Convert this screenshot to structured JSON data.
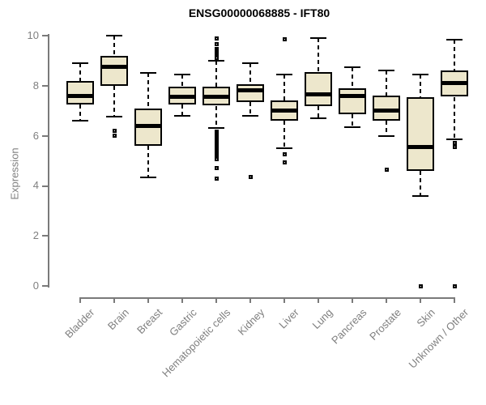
{
  "header": {
    "title": "ENSG00000068885 - IFT80"
  },
  "colors": {
    "box_fill": "#EDE7CC",
    "box_border": "#000000",
    "axis_line": "#7a7a7a",
    "tick_label_text": "#7f7f7f",
    "title_text": "#000000",
    "background": "#ffffff"
  },
  "chart_data": {
    "type": "boxplot",
    "title": "ENSG00000068885 - IFT80",
    "xlabel": "",
    "ylabel": "Expression",
    "ylim": [
      0,
      10
    ],
    "yticks": [
      0,
      2,
      4,
      6,
      8,
      10
    ],
    "grid": false,
    "legend": "none",
    "categories": [
      "Bladder",
      "Brain",
      "Breast",
      "Gastric",
      "Hematopoietic cells",
      "Kidney",
      "Liver",
      "Lung",
      "Pancreas",
      "Prostate",
      "Skin",
      "Unknown / Other"
    ],
    "series": [
      {
        "name": "Bladder",
        "low": 6.6,
        "q1": 7.25,
        "median": 7.6,
        "q3": 8.2,
        "high": 8.9,
        "outliers": []
      },
      {
        "name": "Brain",
        "low": 6.75,
        "q1": 8.0,
        "median": 8.75,
        "q3": 9.2,
        "high": 10.0,
        "outliers": [
          6.2,
          6.0
        ]
      },
      {
        "name": "Breast",
        "low": 4.35,
        "q1": 5.6,
        "median": 6.4,
        "q3": 7.1,
        "high": 8.5,
        "outliers": []
      },
      {
        "name": "Gastric",
        "low": 6.8,
        "q1": 7.25,
        "median": 7.55,
        "q3": 7.95,
        "high": 8.45,
        "outliers": []
      },
      {
        "name": "Hematopoietic cells",
        "low": 6.3,
        "q1": 7.2,
        "median": 7.55,
        "q3": 7.95,
        "high": 9.0,
        "outliers": [
          9.9,
          9.65,
          9.45,
          9.4,
          9.35,
          9.3,
          9.25,
          9.2,
          9.15,
          9.1,
          6.15,
          6.1,
          6.05,
          6.0,
          5.95,
          5.9,
          5.85,
          5.8,
          5.75,
          5.7,
          5.65,
          5.6,
          5.55,
          5.5,
          5.45,
          5.4,
          5.35,
          5.3,
          5.25,
          5.2,
          5.15,
          5.1,
          5.05,
          4.7,
          4.3
        ]
      },
      {
        "name": "Kidney",
        "low": 6.8,
        "q1": 7.35,
        "median": 7.8,
        "q3": 8.05,
        "high": 8.9,
        "outliers": [
          4.35
        ]
      },
      {
        "name": "Liver",
        "low": 5.5,
        "q1": 6.6,
        "median": 7.0,
        "q3": 7.4,
        "high": 8.45,
        "outliers": [
          9.85,
          5.25,
          4.95
        ]
      },
      {
        "name": "Lung",
        "low": 6.7,
        "q1": 7.2,
        "median": 7.65,
        "q3": 8.55,
        "high": 9.9,
        "outliers": []
      },
      {
        "name": "Pancreas",
        "low": 6.35,
        "q1": 6.85,
        "median": 7.6,
        "q3": 7.9,
        "high": 8.75,
        "outliers": []
      },
      {
        "name": "Prostate",
        "low": 6.0,
        "q1": 6.6,
        "median": 7.0,
        "q3": 7.6,
        "high": 8.6,
        "outliers": [
          4.65
        ]
      },
      {
        "name": "Skin",
        "low": 3.6,
        "q1": 4.6,
        "median": 5.55,
        "q3": 7.55,
        "high": 8.45,
        "outliers": [
          0
        ]
      },
      {
        "name": "Unknown / Other",
        "low": 5.85,
        "q1": 7.55,
        "median": 8.1,
        "q3": 8.6,
        "high": 9.85,
        "outliers": [
          5.7,
          5.55,
          0
        ]
      }
    ]
  }
}
